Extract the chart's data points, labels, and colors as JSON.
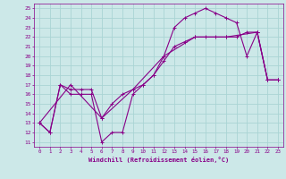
{
  "xlabel": "Windchill (Refroidissement éolien,°C)",
  "bg_color": "#cce8e8",
  "grid_color": "#aad4d4",
  "line_color": "#880088",
  "xlim": [
    -0.5,
    23.5
  ],
  "ylim": [
    10.5,
    25.5
  ],
  "xticks": [
    0,
    1,
    2,
    3,
    4,
    5,
    6,
    7,
    8,
    9,
    10,
    11,
    12,
    13,
    14,
    15,
    16,
    17,
    18,
    19,
    20,
    21,
    22,
    23
  ],
  "yticks": [
    11,
    12,
    13,
    14,
    15,
    16,
    17,
    18,
    19,
    20,
    21,
    22,
    23,
    24,
    25
  ],
  "line1_x": [
    0,
    1,
    2,
    3,
    4,
    5,
    6,
    7,
    8,
    9,
    10,
    11,
    12,
    13,
    14,
    15,
    16,
    17,
    18,
    19,
    20,
    21,
    22,
    23
  ],
  "line1_y": [
    13,
    12,
    17,
    16,
    16,
    16,
    11,
    12,
    12,
    16,
    17,
    18,
    20,
    23,
    24,
    24.5,
    25,
    24.5,
    24,
    23.5,
    20,
    22.5,
    17.5,
    17.5
  ],
  "line2_x": [
    0,
    1,
    2,
    3,
    4,
    5,
    6,
    7,
    8,
    9,
    10,
    11,
    12,
    13,
    14,
    15,
    16,
    17,
    18,
    19,
    20,
    21,
    22,
    23
  ],
  "line2_y": [
    13,
    12,
    17,
    16.5,
    16.5,
    16.5,
    13.5,
    15,
    16,
    16.5,
    17,
    18,
    19.5,
    21,
    21.5,
    22,
    22,
    22,
    22,
    22,
    22.5,
    22.5,
    17.5,
    17.5
  ],
  "line3_x": [
    0,
    3,
    6,
    9,
    12,
    15,
    18,
    21,
    22,
    23
  ],
  "line3_y": [
    13,
    17,
    13.5,
    16.5,
    20,
    22,
    22,
    22.5,
    17.5,
    17.5
  ]
}
